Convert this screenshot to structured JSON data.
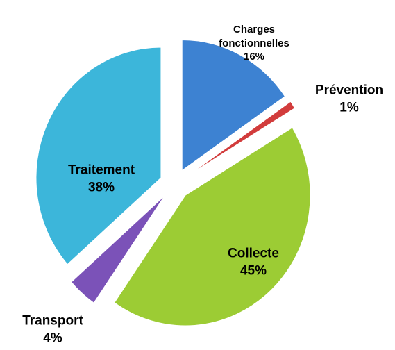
{
  "chart_data": {
    "type": "pie",
    "categories": [
      "Charges fonctionnelles",
      "Prévention",
      "Collecte",
      "Transport",
      "Traitement"
    ],
    "values": [
      16,
      1,
      45,
      4,
      38
    ],
    "value_labels": [
      "16%",
      "1%",
      "45%",
      "4%",
      "38%"
    ],
    "colors": [
      "#3d82d2",
      "#d23c3c",
      "#9ccc34",
      "#7b52b8",
      "#3cb6da"
    ]
  }
}
